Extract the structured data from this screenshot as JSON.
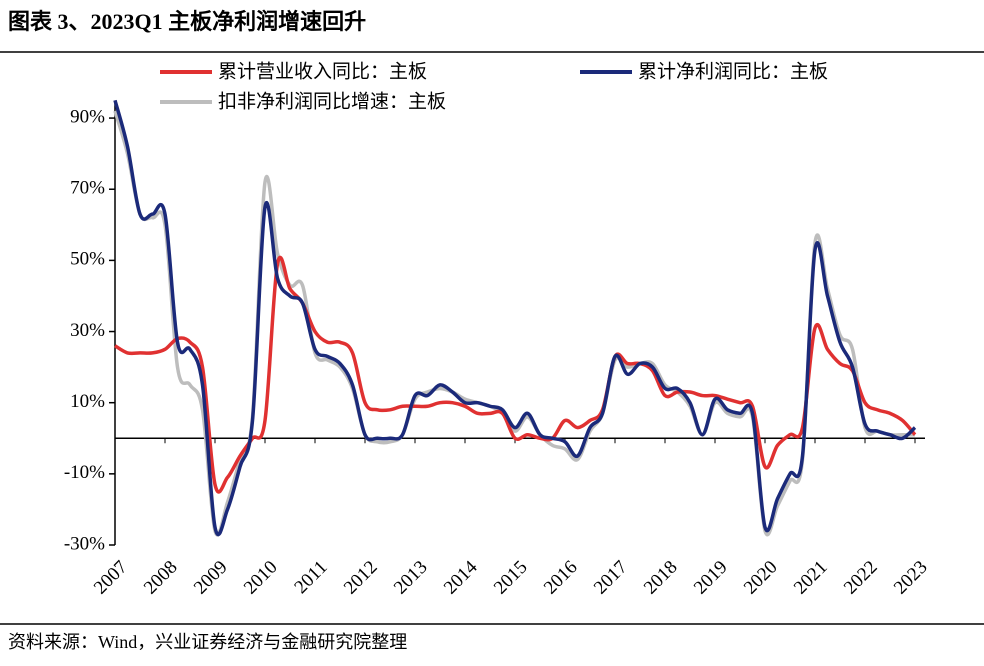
{
  "title": "图表 3、2023Q1 主板净利润增速回升",
  "footer": "资料来源：Wind，兴业证券经济与金融研究院整理",
  "chart_data": {
    "type": "line",
    "legend": "top",
    "x": [
      2007,
      2007.25,
      2007.5,
      2007.75,
      2008,
      2008.25,
      2008.5,
      2008.75,
      2009,
      2009.25,
      2009.5,
      2009.75,
      2010,
      2010.25,
      2010.5,
      2010.75,
      2011,
      2011.25,
      2011.5,
      2011.75,
      2012,
      2012.25,
      2012.5,
      2012.75,
      2013,
      2013.25,
      2013.5,
      2013.75,
      2014,
      2014.25,
      2014.5,
      2014.75,
      2015,
      2015.25,
      2015.5,
      2015.75,
      2016,
      2016.25,
      2016.5,
      2016.75,
      2017,
      2017.25,
      2017.5,
      2017.75,
      2018,
      2018.25,
      2018.5,
      2018.75,
      2019,
      2019.25,
      2019.5,
      2019.75,
      2020,
      2020.25,
      2020.5,
      2020.75,
      2021,
      2021.25,
      2021.5,
      2021.75,
      2022,
      2022.25,
      2022.5,
      2022.75,
      2023
    ],
    "xlim": [
      2007,
      2023.2
    ],
    "xticks": [
      2007,
      2008,
      2009,
      2010,
      2011,
      2012,
      2013,
      2014,
      2015,
      2016,
      2017,
      2018,
      2019,
      2020,
      2021,
      2022,
      2023
    ],
    "ylim": [
      -30,
      100
    ],
    "yticks": [
      {
        "value": -30,
        "label": "-30%"
      },
      {
        "value": -10,
        "label": "-10%"
      },
      {
        "value": 10,
        "label": "10%"
      },
      {
        "value": 30,
        "label": "30%"
      },
      {
        "value": 50,
        "label": "50%"
      },
      {
        "value": 70,
        "label": "70%"
      },
      {
        "value": 90,
        "label": "90%"
      }
    ],
    "series": [
      {
        "name": "累计营业收入同比：主板",
        "color": "#e03131",
        "values": [
          26,
          24,
          24,
          24,
          25,
          28,
          27,
          20,
          -13,
          -11,
          -5,
          0,
          5,
          49,
          42,
          38,
          30,
          27,
          27,
          24,
          10,
          8,
          8,
          9,
          9,
          9,
          10,
          10,
          9,
          7,
          7,
          7,
          0,
          1,
          0,
          0,
          5,
          3,
          5,
          8,
          23,
          21,
          21,
          19,
          12,
          13,
          13,
          12,
          12,
          11,
          10,
          9,
          -8,
          -2,
          1,
          3,
          31,
          25,
          21,
          19,
          10,
          8,
          7,
          5,
          1
        ]
      },
      {
        "name": "累计净利润同比：主板",
        "color": "#1b2a7a",
        "values": [
          95,
          82,
          63,
          63,
          63,
          27,
          25,
          15,
          -25,
          -20,
          -8,
          5,
          65,
          45,
          40,
          38,
          25,
          23,
          21,
          15,
          1,
          0,
          0,
          1,
          12,
          12,
          15,
          13,
          10,
          10,
          9,
          8,
          3,
          7,
          1,
          0,
          -1,
          -5,
          3,
          7,
          23,
          18,
          21,
          20,
          14,
          14,
          10,
          1,
          11,
          8,
          7,
          7,
          -25,
          -17,
          -10,
          -5,
          53,
          40,
          27,
          20,
          4,
          2,
          1,
          0,
          3
        ]
      },
      {
        "name": "扣非净利润同比增速：主板",
        "color": "#bdbdbd",
        "values": [
          92,
          80,
          63,
          62,
          60,
          20,
          15,
          8,
          -26,
          -18,
          -6,
          6,
          72,
          52,
          43,
          43,
          24,
          22,
          20,
          14,
          1,
          -1,
          -1,
          1,
          11,
          13,
          14,
          13,
          11,
          10,
          9,
          7,
          2,
          6,
          1,
          -2,
          -3,
          -6,
          2,
          7,
          22,
          20,
          21,
          21,
          15,
          13,
          9,
          1,
          10,
          7,
          6,
          6,
          -26,
          -19,
          -12,
          -6,
          55,
          42,
          29,
          25,
          3,
          2,
          1,
          1,
          1
        ]
      }
    ]
  }
}
